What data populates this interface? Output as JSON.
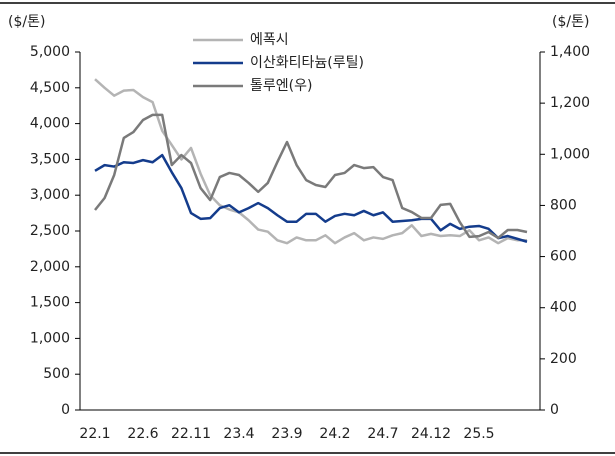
{
  "chart_data": {
    "type": "line",
    "y_label": "($/톤)",
    "y2_label": "($/톤)",
    "categories": [
      "22.1",
      null,
      null,
      null,
      null,
      "22.6",
      null,
      null,
      null,
      null,
      "22.11",
      null,
      null,
      null,
      null,
      "23.4",
      null,
      null,
      null,
      null,
      "23.9",
      null,
      null,
      null,
      null,
      "24.2",
      null,
      null,
      null,
      null,
      "24.7",
      null,
      null,
      null,
      null,
      "24.12",
      null,
      null,
      null,
      null,
      "25.5",
      null,
      null,
      null,
      null,
      null
    ],
    "series": [
      {
        "name": "에폭시",
        "color": "#b4b4b4",
        "axis": "y",
        "values": [
          4620,
          4500,
          4390,
          4460,
          4470,
          4370,
          4300,
          3900,
          3700,
          3500,
          3660,
          3300,
          3000,
          2860,
          2800,
          2760,
          2650,
          2520,
          2490,
          2370,
          2330,
          2410,
          2370,
          2370,
          2440,
          2330,
          2410,
          2470,
          2370,
          2410,
          2390,
          2440,
          2470,
          2580,
          2430,
          2460,
          2430,
          2440,
          2430,
          2510,
          2370,
          2410,
          2330,
          2400,
          2370,
          2370
        ]
      },
      {
        "name": "이산화티타늄(루틸)",
        "color": "#143c8c",
        "axis": "y",
        "values": [
          3340,
          3420,
          3400,
          3460,
          3450,
          3490,
          3460,
          3560,
          3320,
          3100,
          2750,
          2670,
          2680,
          2820,
          2860,
          2760,
          2820,
          2890,
          2820,
          2720,
          2630,
          2630,
          2740,
          2740,
          2630,
          2710,
          2740,
          2720,
          2780,
          2720,
          2760,
          2630,
          2640,
          2650,
          2670,
          2670,
          2510,
          2600,
          2530,
          2560,
          2570,
          2530,
          2400,
          2430,
          2390,
          2350
        ]
      },
      {
        "name": "톨루엔(우)",
        "color": "#7a7a7a",
        "axis": "y2",
        "values": [
          782,
          829,
          919,
          1064,
          1087,
          1134,
          1154,
          1154,
          958,
          997,
          966,
          868,
          821,
          911,
          927,
          919,
          888,
          853,
          888,
          970,
          1048,
          958,
          899,
          880,
          872,
          919,
          927,
          958,
          946,
          950,
          911,
          899,
          790,
          774,
          751,
          751,
          802,
          806,
          735,
          677,
          680,
          696,
          673,
          704,
          704,
          696
        ]
      }
    ],
    "ylim": [
      0,
      5000
    ],
    "yticks": [
      0,
      500,
      {
        "value": 1000,
        "label": "1,000"
      },
      {
        "value": 1500,
        "label": "1,500"
      },
      {
        "value": 2000,
        "label": "2,000"
      },
      {
        "value": 2500,
        "label": "2,500"
      },
      {
        "value": 3000,
        "label": "3,000"
      },
      {
        "value": 3500,
        "label": "3,500"
      },
      {
        "value": 4000,
        "label": "4,000"
      },
      {
        "value": 4500,
        "label": "4,500"
      },
      {
        "value": 5000,
        "label": "5,000"
      }
    ],
    "y2lim": [
      0,
      1400
    ],
    "y2ticks": [
      0,
      200,
      400,
      600,
      800,
      {
        "value": 1000,
        "label": "1,000"
      },
      {
        "value": 1200,
        "label": "1,200"
      },
      {
        "value": 1400,
        "label": "1,400"
      }
    ],
    "legend": "top"
  }
}
